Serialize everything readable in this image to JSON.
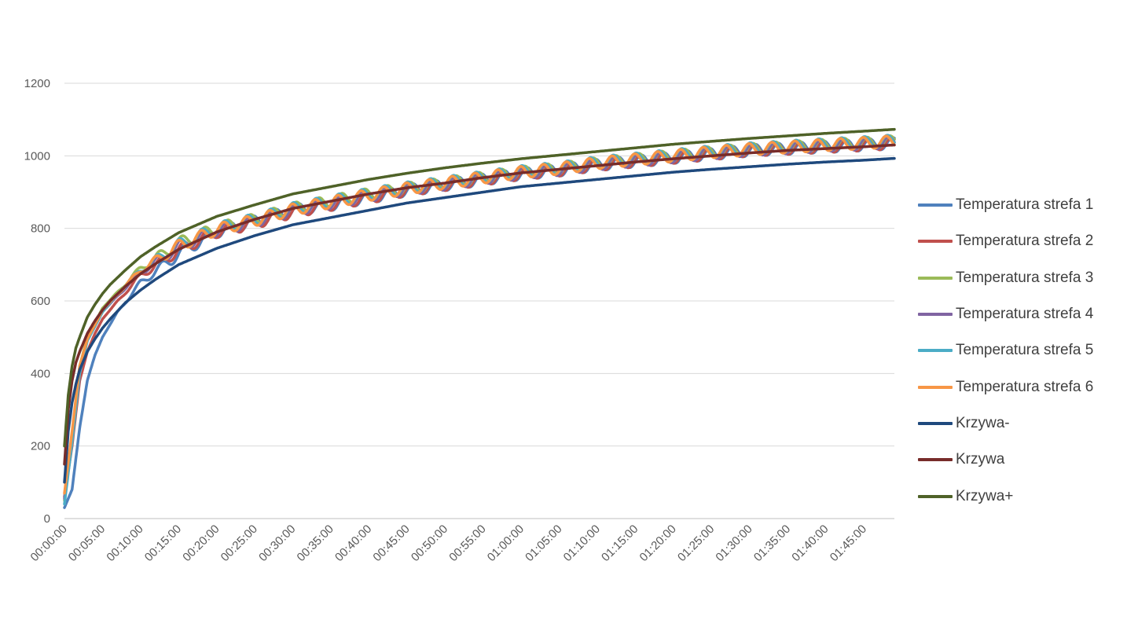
{
  "chart_data": {
    "type": "line",
    "title": "",
    "xlabel": "",
    "ylabel": "",
    "ylim": [
      0,
      1200
    ],
    "yticks": [
      0,
      200,
      400,
      600,
      800,
      1000,
      1200
    ],
    "x_tick_labels": [
      "00:00:00",
      "00:05:00",
      "00:10:00",
      "00:15:00",
      "00:20:00",
      "00:25:00",
      "00:30:00",
      "00:35:00",
      "00:40:00",
      "00:45:00",
      "00:50:00",
      "00:55:00",
      "01:00:00",
      "01:05:00",
      "01:10:00",
      "01:15:00",
      "01:20:00",
      "01:25:00",
      "01:30:00",
      "01:35:00",
      "01:40:00",
      "01:45:00"
    ],
    "x_range_minutes": [
      0,
      109
    ],
    "grid": true,
    "legend_position": "right",
    "series": [
      {
        "name": "Temperatura strefa 1",
        "color": "#4F81BD",
        "x": [
          0,
          1,
          2,
          3,
          4,
          5,
          7,
          10,
          15,
          20,
          25,
          30,
          35,
          40,
          45,
          50,
          55,
          60,
          65,
          70,
          75,
          80,
          85,
          90,
          95,
          100,
          105,
          109
        ],
        "y": [
          30,
          80,
          250,
          380,
          450,
          500,
          570,
          650,
          730,
          790,
          820,
          850,
          865,
          885,
          905,
          920,
          935,
          950,
          960,
          975,
          985,
          995,
          1005,
          1015,
          1020,
          1025,
          1030,
          1035
        ]
      },
      {
        "name": "Temperatura strefa 2",
        "color": "#C0504D",
        "x": [
          0,
          1,
          2,
          3,
          4,
          5,
          7,
          10,
          15,
          20,
          25,
          30,
          35,
          40,
          45,
          50,
          55,
          60,
          65,
          70,
          75,
          80,
          85,
          90,
          95,
          100,
          105,
          109
        ],
        "y": [
          60,
          200,
          380,
          460,
          510,
          550,
          600,
          670,
          740,
          790,
          815,
          845,
          865,
          885,
          905,
          920,
          935,
          950,
          960,
          975,
          985,
          995,
          1005,
          1015,
          1020,
          1025,
          1030,
          1035
        ]
      },
      {
        "name": "Temperatura strefa 3",
        "color": "#9BBB59",
        "x": [
          0,
          1,
          2,
          3,
          4,
          5,
          7,
          10,
          15,
          20,
          25,
          30,
          35,
          40,
          45,
          50,
          55,
          60,
          65,
          70,
          75,
          80,
          85,
          90,
          95,
          100,
          105,
          109
        ],
        "y": [
          50,
          230,
          420,
          500,
          540,
          580,
          625,
          690,
          760,
          800,
          825,
          855,
          875,
          895,
          910,
          925,
          940,
          955,
          965,
          980,
          990,
          1000,
          1010,
          1018,
          1024,
          1030,
          1035,
          1040
        ]
      },
      {
        "name": "Temperatura strefa 4",
        "color": "#8064A2",
        "x": [
          0,
          1,
          2,
          3,
          4,
          5,
          7,
          10,
          15,
          20,
          25,
          30,
          35,
          40,
          45,
          50,
          55,
          60,
          65,
          70,
          75,
          80,
          85,
          90,
          95,
          100,
          105,
          109
        ],
        "y": [
          55,
          220,
          410,
          490,
          530,
          570,
          615,
          680,
          750,
          795,
          820,
          850,
          870,
          890,
          908,
          922,
          938,
          952,
          962,
          977,
          987,
          997,
          1007,
          1016,
          1022,
          1028,
          1033,
          1038
        ]
      },
      {
        "name": "Temperatura strefa 5",
        "color": "#4BACC6",
        "x": [
          0,
          1,
          2,
          3,
          4,
          5,
          7,
          10,
          15,
          20,
          25,
          30,
          35,
          40,
          45,
          50,
          55,
          60,
          65,
          70,
          75,
          80,
          85,
          90,
          95,
          100,
          105,
          109
        ],
        "y": [
          40,
          210,
          400,
          490,
          530,
          570,
          620,
          685,
          755,
          800,
          825,
          855,
          875,
          895,
          912,
          927,
          942,
          957,
          967,
          982,
          992,
          1002,
          1012,
          1020,
          1026,
          1032,
          1037,
          1042
        ]
      },
      {
        "name": "Temperatura strefa 6",
        "color": "#F79646",
        "x": [
          0,
          1,
          2,
          3,
          4,
          5,
          7,
          10,
          15,
          20,
          25,
          30,
          35,
          40,
          45,
          50,
          55,
          60,
          65,
          70,
          75,
          80,
          85,
          90,
          95,
          100,
          105,
          109
        ],
        "y": [
          70,
          240,
          420,
          495,
          535,
          575,
          620,
          685,
          752,
          797,
          822,
          852,
          872,
          892,
          910,
          925,
          940,
          955,
          965,
          980,
          990,
          1000,
          1010,
          1018,
          1024,
          1030,
          1035,
          1040
        ]
      },
      {
        "name": "Krzywa-",
        "color": "#1F497D",
        "x": [
          0,
          0.5,
          1,
          1.5,
          2,
          3,
          4,
          5,
          6,
          8,
          10,
          12,
          15,
          20,
          25,
          30,
          35,
          40,
          45,
          50,
          55,
          60,
          65,
          70,
          75,
          80,
          85,
          90,
          95,
          100,
          105,
          109
        ],
        "y": [
          100,
          240,
          320,
          370,
          410,
          460,
          495,
          525,
          550,
          595,
          630,
          660,
          700,
          745,
          780,
          810,
          830,
          850,
          870,
          885,
          900,
          915,
          925,
          935,
          945,
          955,
          963,
          970,
          977,
          983,
          988,
          993
        ]
      },
      {
        "name": "Krzywa",
        "color": "#772C2A",
        "x": [
          0,
          0.5,
          1,
          1.5,
          2,
          3,
          4,
          5,
          6,
          8,
          10,
          12,
          15,
          20,
          25,
          30,
          35,
          40,
          45,
          50,
          55,
          60,
          65,
          70,
          75,
          80,
          85,
          90,
          95,
          100,
          105,
          109
        ],
        "y": [
          150,
          300,
          380,
          430,
          460,
          510,
          545,
          575,
          600,
          640,
          675,
          703,
          742,
          790,
          825,
          855,
          875,
          895,
          912,
          925,
          940,
          953,
          963,
          973,
          983,
          992,
          1000,
          1008,
          1015,
          1020,
          1025,
          1030
        ]
      },
      {
        "name": "Krzywa+",
        "color": "#4F6228",
        "x": [
          0,
          0.5,
          1,
          1.5,
          2,
          3,
          4,
          5,
          6,
          8,
          10,
          12,
          15,
          20,
          25,
          30,
          35,
          40,
          45,
          50,
          55,
          60,
          65,
          70,
          75,
          80,
          85,
          90,
          95,
          100,
          105,
          109
        ],
        "y": [
          200,
          340,
          420,
          470,
          500,
          555,
          590,
          620,
          645,
          685,
          722,
          750,
          788,
          833,
          865,
          895,
          915,
          935,
          952,
          967,
          980,
          992,
          1002,
          1012,
          1022,
          1032,
          1040,
          1048,
          1055,
          1062,
          1068,
          1073
        ]
      }
    ]
  }
}
